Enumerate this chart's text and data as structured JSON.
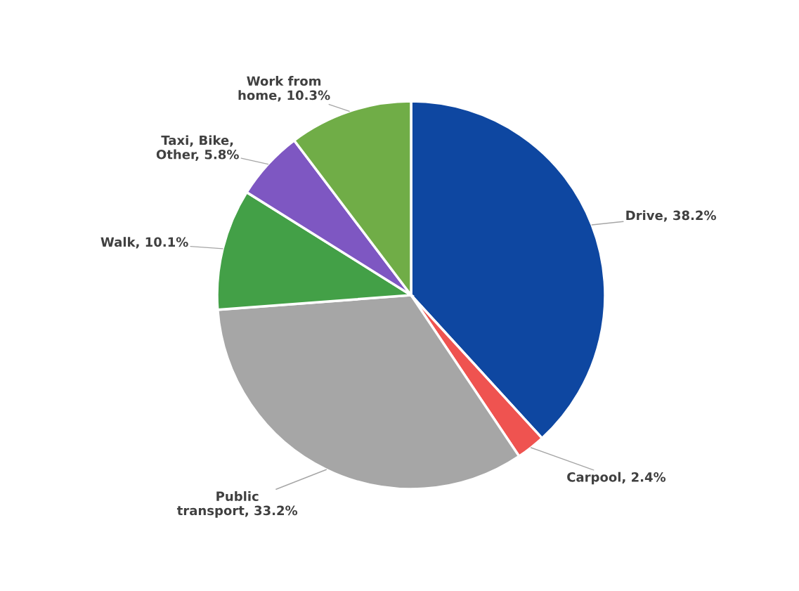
{
  "chart_data": {
    "type": "pie",
    "categories": [
      "Drive",
      "Carpool",
      "Public\ntransport",
      "Walk",
      "Taxi, Bike,\nOther",
      "Work from\nhome"
    ],
    "values": [
      38.2,
      2.4,
      33.2,
      10.1,
      5.8,
      10.3
    ],
    "value_labels": [
      "38.2%",
      "2.4%",
      "33.2%",
      "10.1%",
      "5.8%",
      "10.3%"
    ],
    "colors": [
      "#0e47a1",
      "#ef5350",
      "#a6a6a6",
      "#43a047",
      "#7e57c2",
      "#70ad47"
    ],
    "legend": false
  }
}
